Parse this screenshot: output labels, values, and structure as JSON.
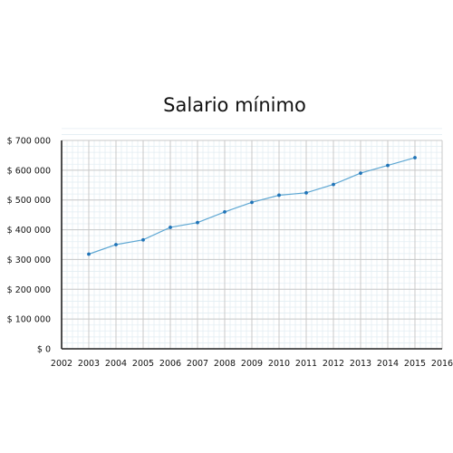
{
  "chart_data": {
    "type": "line",
    "title": "Salario mínimo",
    "xlabel": "",
    "ylabel": "",
    "x": [
      2003,
      2004,
      2005,
      2006,
      2007,
      2008,
      2009,
      2010,
      2011,
      2012,
      2013,
      2014,
      2015
    ],
    "series": [
      {
        "values": [
          318000,
          350000,
          366000,
          408000,
          424000,
          460000,
          492000,
          516000,
          524000,
          552000,
          590000,
          616000,
          642000
        ],
        "color": "#5ea7d3",
        "marker_color": "#1f73b7"
      }
    ],
    "xlim": [
      2002,
      2016
    ],
    "ylim": [
      0,
      700000
    ],
    "x_tick_labels": [
      "2002",
      "2003",
      "2004",
      "2005",
      "2006",
      "2007",
      "2008",
      "2009",
      "2010",
      "2011",
      "2012",
      "2013",
      "2014",
      "2015",
      "2016"
    ],
    "y_tick_labels": [
      "$ 0",
      "$ 100 000",
      "$ 200 000",
      "$ 300 000",
      "$ 400 000",
      "$ 500 000",
      "$ 600 000",
      "$ 700 000"
    ],
    "grid": true,
    "legend": "none"
  }
}
